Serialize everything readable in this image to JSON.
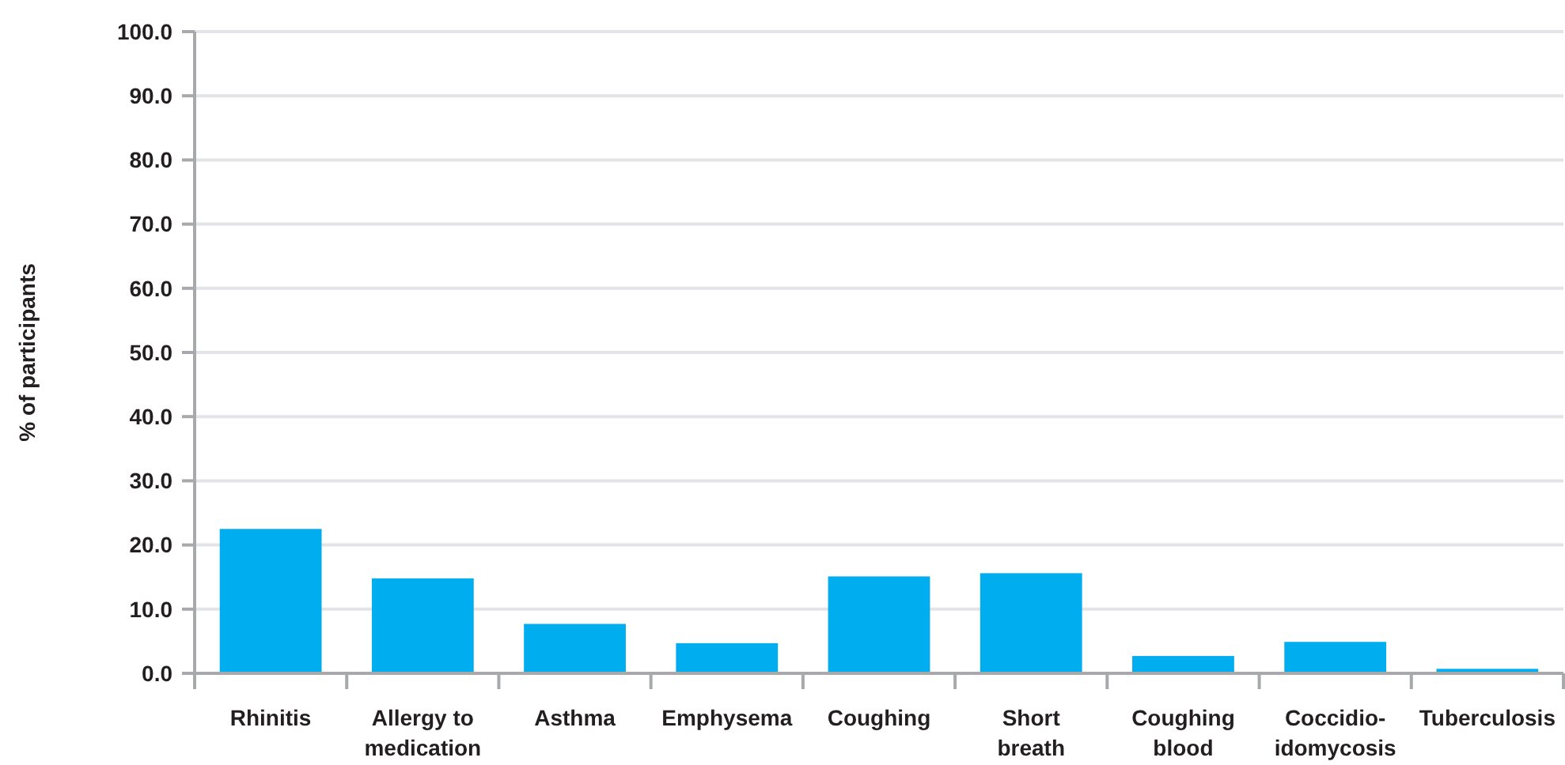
{
  "chart_data": {
    "type": "bar",
    "ylabel": "% of participants",
    "categories": [
      "Rhinitis",
      "Allergy to medication",
      "Asthma",
      "Emphysema",
      "Coughing",
      "Short breath",
      "Coughing blood",
      "Coccidio-idomycosis",
      "Tuberculosis"
    ],
    "values": [
      22.5,
      14.8,
      7.7,
      4.7,
      15.1,
      15.6,
      2.7,
      4.9,
      0.7
    ],
    "color": "#00aeef",
    "ylim": [
      0,
      100
    ],
    "yticks": [
      {
        "value": 0,
        "label": "0.0"
      },
      {
        "value": 10,
        "label": "10.0"
      },
      {
        "value": 20,
        "label": "20.0"
      },
      {
        "value": 30,
        "label": "30.0"
      },
      {
        "value": 40,
        "label": "40.0"
      },
      {
        "value": 50,
        "label": "50.0"
      },
      {
        "value": 60,
        "label": "60.0"
      },
      {
        "value": 70,
        "label": "70.0"
      },
      {
        "value": 80,
        "label": "80.0"
      },
      {
        "value": 90,
        "label": "90.0"
      },
      {
        "value": 100,
        "label": "100.0"
      }
    ],
    "grid": "y"
  }
}
